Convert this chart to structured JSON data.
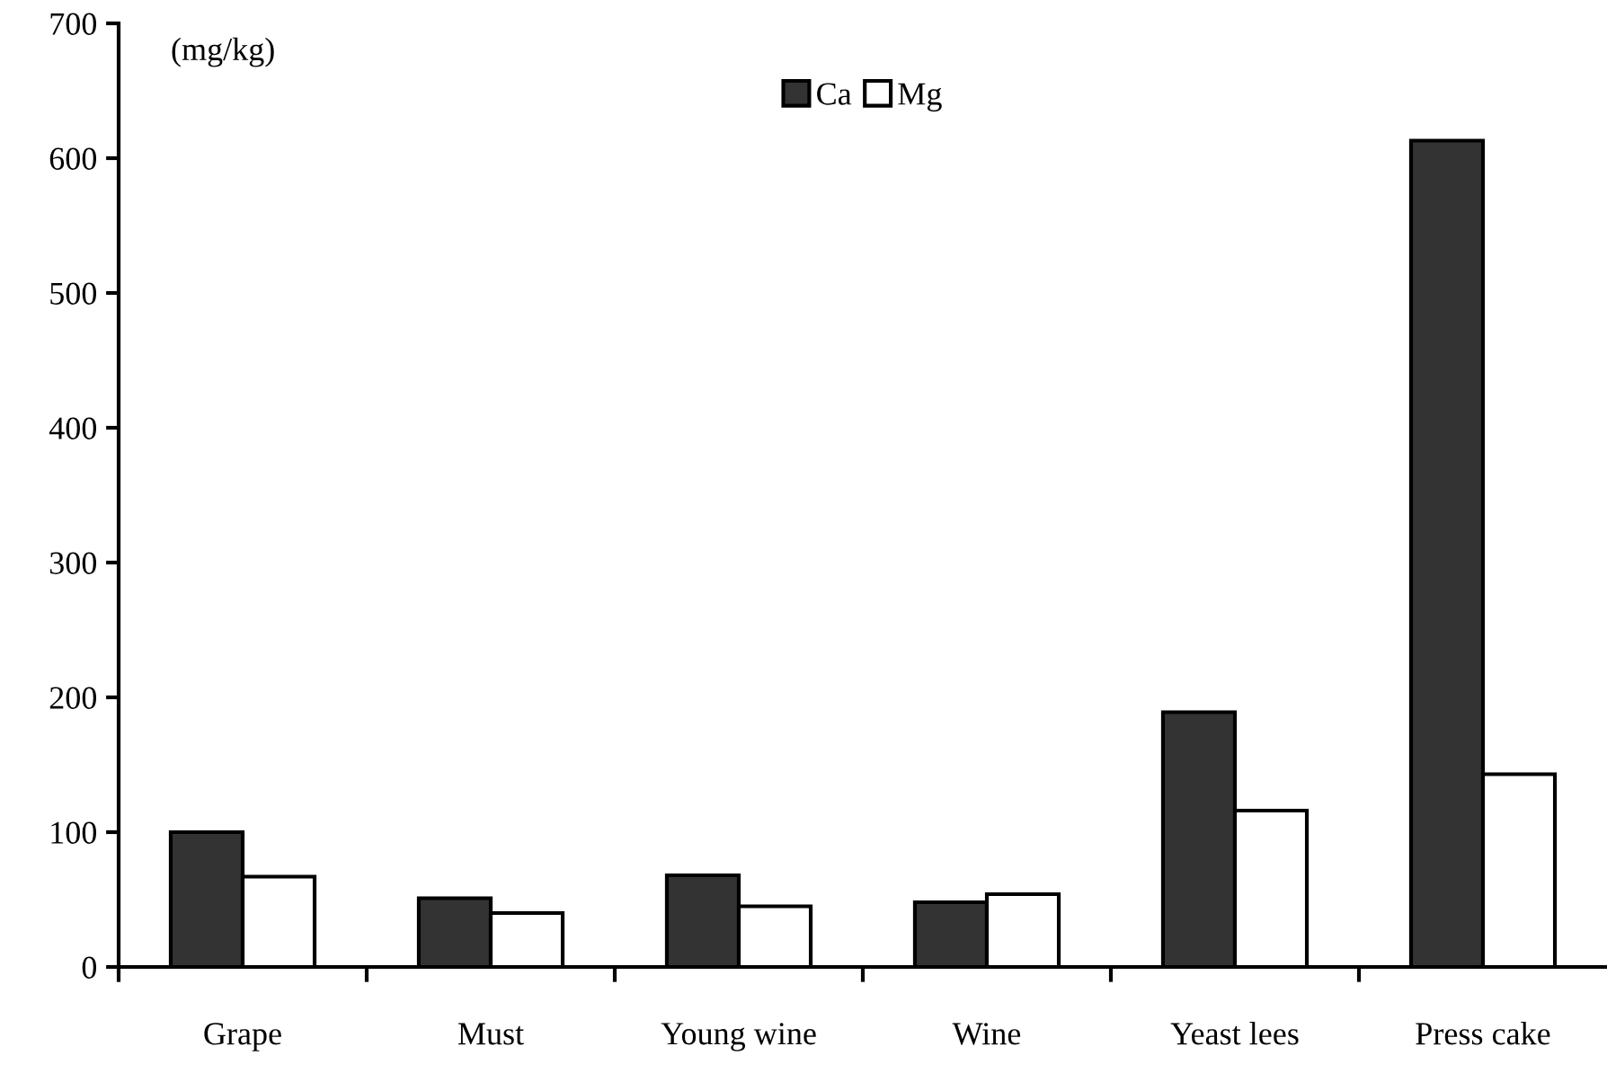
{
  "chart_data": {
    "type": "bar",
    "ylabel": "(mg/kg)",
    "categories": [
      "Grape",
      "Must",
      "Young wine",
      "Wine",
      "Yeast lees",
      "Press cake"
    ],
    "series": [
      {
        "name": "Ca",
        "color": "#333333",
        "values": [
          100,
          51,
          68,
          48,
          189,
          613
        ]
      },
      {
        "name": "Mg",
        "color": "#ffffff",
        "values": [
          67,
          40,
          45,
          54,
          116,
          143
        ]
      }
    ],
    "ylim": [
      0,
      700
    ],
    "yticks": [
      0,
      100,
      200,
      300,
      400,
      500,
      600,
      700
    ],
    "grid": false,
    "legend": "top"
  }
}
